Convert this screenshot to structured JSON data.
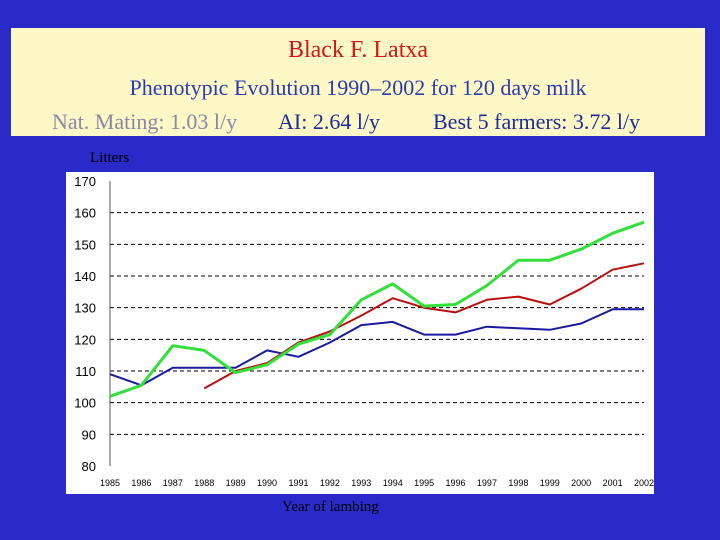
{
  "header": {
    "title": "Black F. Latxa",
    "subtitle": "Phenotypic Evolution 1990–2002 for 120 days milk",
    "stats": {
      "nat_mating": "Nat. Mating: 1.03 l/y",
      "ai": "AI: 2.64 l/y",
      "best5": "Best 5 farmers: 3.72 l/y"
    }
  },
  "chart_data": {
    "type": "line",
    "title": "",
    "xlabel": "Year of lambing",
    "ylabel": "Litters",
    "ylim": [
      80,
      170
    ],
    "yticks": [
      80,
      90,
      100,
      110,
      120,
      130,
      140,
      150,
      160,
      170
    ],
    "categories": [
      "1985",
      "1986",
      "1987",
      "1988",
      "1989",
      "1990",
      "1991",
      "1992",
      "1993",
      "1994",
      "1995",
      "1996",
      "1997",
      "1998",
      "1999",
      "2000",
      "2001",
      "2002"
    ],
    "grid": "horizontal-dashed",
    "legend": "none",
    "series": [
      {
        "color": "#1a1aa0",
        "values": [
          109,
          105.5,
          111,
          111,
          111,
          116.5,
          114.5,
          119,
          124.5,
          125.5,
          121.5,
          121.5,
          124,
          123.5,
          123,
          125,
          129.5,
          129.5
        ]
      },
      {
        "color": "#b81010",
        "values": [
          null,
          null,
          null,
          104.5,
          110,
          112.5,
          119,
          122.5,
          127.5,
          133,
          130,
          128.5,
          132.5,
          133.5,
          131,
          136,
          142,
          144
        ]
      },
      {
        "color": "#33e03a",
        "values": [
          102,
          105.5,
          118,
          116.5,
          109.5,
          112,
          118.5,
          121.5,
          132.5,
          137.5,
          130.5,
          131,
          137,
          145,
          145,
          148.5,
          153.5,
          157
        ]
      }
    ]
  }
}
